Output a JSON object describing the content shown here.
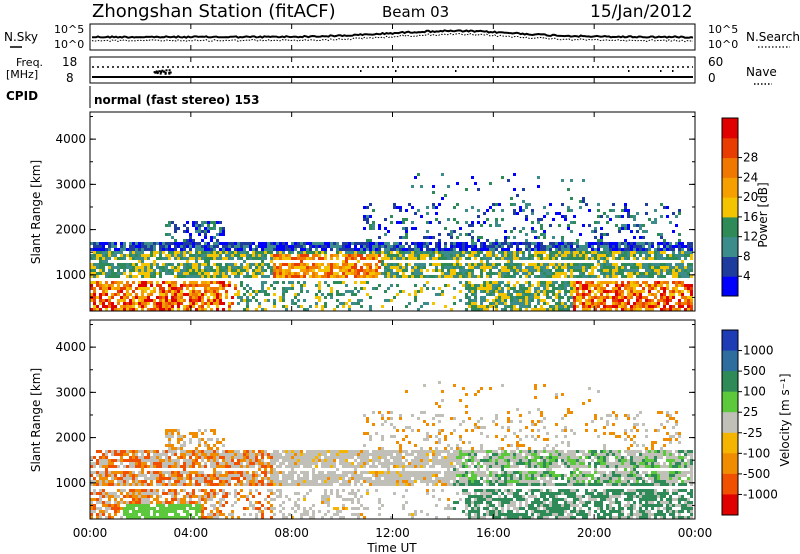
{
  "header": {
    "title": "Zhongshan Station (fitACF)",
    "beam": "Beam 03",
    "date": "15/Jan/2012"
  },
  "top_panels": {
    "nsky_label": "N.Sky",
    "nsky_ticks": [
      "10^5",
      "10^0"
    ],
    "nsearch_label": "N.Search",
    "nsearch_ticks": [
      "10^5",
      "10^0"
    ],
    "freq_label_line1": "Freq.",
    "freq_label_line2": "[MHz]",
    "freq_ticks": [
      "18",
      "8"
    ],
    "nave_label": "Nave",
    "nave_ticks": [
      "60",
      "0"
    ],
    "cpid_label": "CPID",
    "cpid_text": "normal (fast stereo) 153"
  },
  "chart_data": [
    {
      "type": "heatmap",
      "name": "power",
      "ylabel": "Slant Range [km]",
      "yticks": [
        "1000",
        "2000",
        "3000",
        "4000"
      ],
      "ylim": [
        200,
        4600
      ],
      "x_ticks": [
        "00:00",
        "04:00",
        "08:00",
        "12:00",
        "16:00",
        "20:00",
        "00:00"
      ],
      "colorbar": {
        "label": "Power [dB]",
        "ticks": [
          "4",
          "8",
          "12",
          "16",
          "20",
          "24",
          "28"
        ],
        "colors": [
          "#0000ff",
          "#1e3c9e",
          "#3c8c8c",
          "#2e8b57",
          "#f4c400",
          "#f6a000",
          "#f07800",
          "#e83c00",
          "#e00000"
        ]
      }
    },
    {
      "type": "heatmap",
      "name": "velocity",
      "ylabel": "Slant Range [km]",
      "yticks": [
        "1000",
        "2000",
        "3000",
        "4000"
      ],
      "ylim": [
        200,
        4600
      ],
      "x_ticks": [
        "00:00",
        "04:00",
        "08:00",
        "12:00",
        "16:00",
        "20:00",
        "00:00"
      ],
      "xlabel": "Time UT",
      "colorbar": {
        "label": "Velocity [m s⁻¹]",
        "ticks": [
          "1000",
          "500",
          "100",
          "25",
          "-25",
          "-100",
          "-500",
          "-1000"
        ],
        "colors": [
          "#1e3cb4",
          "#2e6e9e",
          "#2e8b57",
          "#5cc83c",
          "#c0c0b8",
          "#f4b400",
          "#f08c00",
          "#f05000",
          "#e00000"
        ]
      }
    }
  ]
}
